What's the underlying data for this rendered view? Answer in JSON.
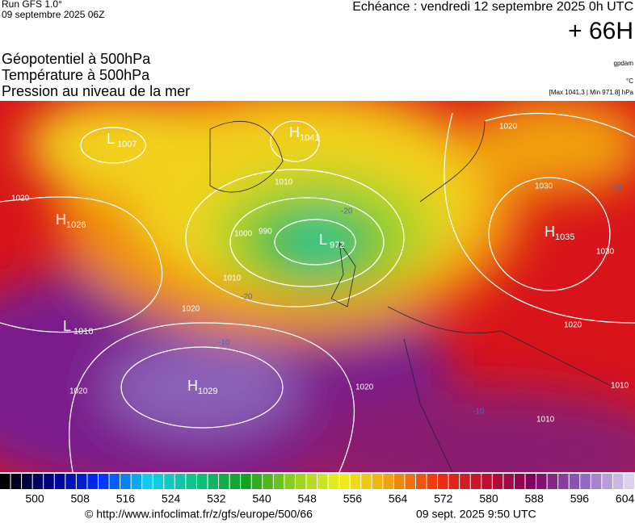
{
  "header": {
    "run": "Run GFS 1.0°",
    "run_date": "09 septembre 2025 06Z",
    "valid": "Echéance : vendredi 12 septembre 2025 0h UTC",
    "lead": "+ 66H",
    "fields": [
      "Géopotentiel à 500hPa",
      "Température à 500hPa",
      "Pression au niveau de la mer"
    ],
    "units": [
      "gpdam",
      "°C"
    ],
    "extremes": "[Max 1041.3 | Min 971.8] hPa"
  },
  "pressure_centers": [
    {
      "type": "L",
      "value": "1007"
    },
    {
      "type": "H",
      "value": "1041"
    },
    {
      "type": "H",
      "value": "1026"
    },
    {
      "type": "L",
      "value": "972"
    },
    {
      "type": "H",
      "value": "1035"
    },
    {
      "type": "L",
      "value": "1010"
    },
    {
      "type": "H",
      "value": "1029"
    }
  ],
  "isobar_labels": [
    "1020",
    "1010",
    "990",
    "1000",
    "1010",
    "1020",
    "1020",
    "1020",
    "1030",
    "1030",
    "1020",
    "1020",
    "1010",
    "1010"
  ],
  "temperature_labels": [
    "-20",
    "-20",
    "-20",
    "-10",
    "-10"
  ],
  "colorbar": {
    "labels": [
      500,
      508,
      516,
      524,
      532,
      540,
      548,
      556,
      564,
      572,
      580,
      588,
      596,
      604
    ]
  },
  "footer": {
    "url": "© http://www.infoclimat.fr/z/gfs/europe/500/66",
    "timestamp": "09 sept. 2025  9:50 UTC"
  }
}
